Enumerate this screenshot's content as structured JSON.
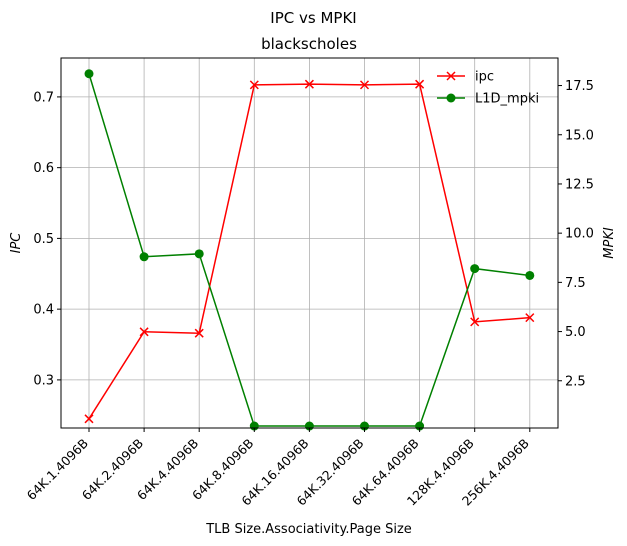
{
  "chart_data": {
    "type": "line",
    "title": "IPC vs MPKI",
    "subtitle": "blackscholes",
    "xlabel": "TLB Size.Associativity.Page Size",
    "ylabel_left": "IPC",
    "ylabel_right": "MPKI",
    "categories": [
      "64K.1.4096B",
      "64K.2.4096B",
      "64K.4.4096B",
      "64K.8.4096B",
      "64K.16.4096B",
      "64K.32.4096B",
      "64K.64.4096B",
      "128K.4.4096B",
      "256K.4.4096B"
    ],
    "ylim_left": [
      0.232,
      0.755
    ],
    "ylim_right": [
      0.1,
      18.9
    ],
    "yticks_left": [
      0.3,
      0.4,
      0.5,
      0.6,
      0.7
    ],
    "yticks_right": [
      2.5,
      5.0,
      7.5,
      10.0,
      12.5,
      15.0,
      17.5
    ],
    "grid": true,
    "legend_position": "top-right",
    "series": [
      {
        "name": "ipc",
        "axis": "left",
        "color": "#ff0000",
        "marker": "x",
        "values": [
          0.245,
          0.368,
          0.366,
          0.717,
          0.718,
          0.717,
          0.718,
          0.382,
          0.388
        ]
      },
      {
        "name": "L1D_mpki",
        "axis": "right",
        "color": "#008000",
        "marker": "o",
        "values": [
          18.1,
          8.8,
          8.95,
          0.2,
          0.2,
          0.2,
          0.2,
          8.2,
          7.85
        ]
      }
    ]
  }
}
